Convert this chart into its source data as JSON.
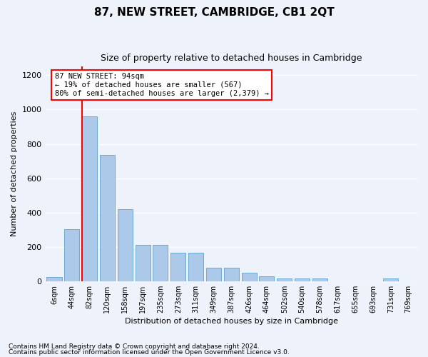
{
  "title": "87, NEW STREET, CAMBRIDGE, CB1 2QT",
  "subtitle": "Size of property relative to detached houses in Cambridge",
  "xlabel": "Distribution of detached houses by size in Cambridge",
  "ylabel": "Number of detached properties",
  "footnote1": "Contains HM Land Registry data © Crown copyright and database right 2024.",
  "footnote2": "Contains public sector information licensed under the Open Government Licence v3.0.",
  "annotation_title": "87 NEW STREET: 94sqm",
  "annotation_line1": "← 19% of detached houses are smaller (567)",
  "annotation_line2": "80% of semi-detached houses are larger (2,379) →",
  "bar_labels": [
    "6sqm",
    "44sqm",
    "82sqm",
    "120sqm",
    "158sqm",
    "197sqm",
    "235sqm",
    "273sqm",
    "311sqm",
    "349sqm",
    "387sqm",
    "426sqm",
    "464sqm",
    "502sqm",
    "540sqm",
    "578sqm",
    "617sqm",
    "655sqm",
    "693sqm",
    "731sqm",
    "769sqm"
  ],
  "bar_heights": [
    25,
    305,
    960,
    735,
    420,
    210,
    210,
    165,
    165,
    80,
    80,
    50,
    30,
    15,
    15,
    15,
    0,
    0,
    0,
    15,
    0
  ],
  "bar_color": "#adc9e9",
  "bar_edge_color": "#6aaad4",
  "vline_color": "red",
  "vline_pos": 1.57,
  "ylim": [
    0,
    1250
  ],
  "yticks": [
    0,
    200,
    400,
    600,
    800,
    1000,
    1200
  ],
  "background_color": "#eef2fa",
  "grid_color": "#ffffff",
  "annotation_box_facecolor": "white",
  "annotation_box_edgecolor": "red",
  "title_fontsize": 11,
  "subtitle_fontsize": 9,
  "ylabel_fontsize": 8,
  "xlabel_fontsize": 8,
  "ytick_fontsize": 8,
  "xtick_fontsize": 7,
  "footnote_fontsize": 6.5
}
